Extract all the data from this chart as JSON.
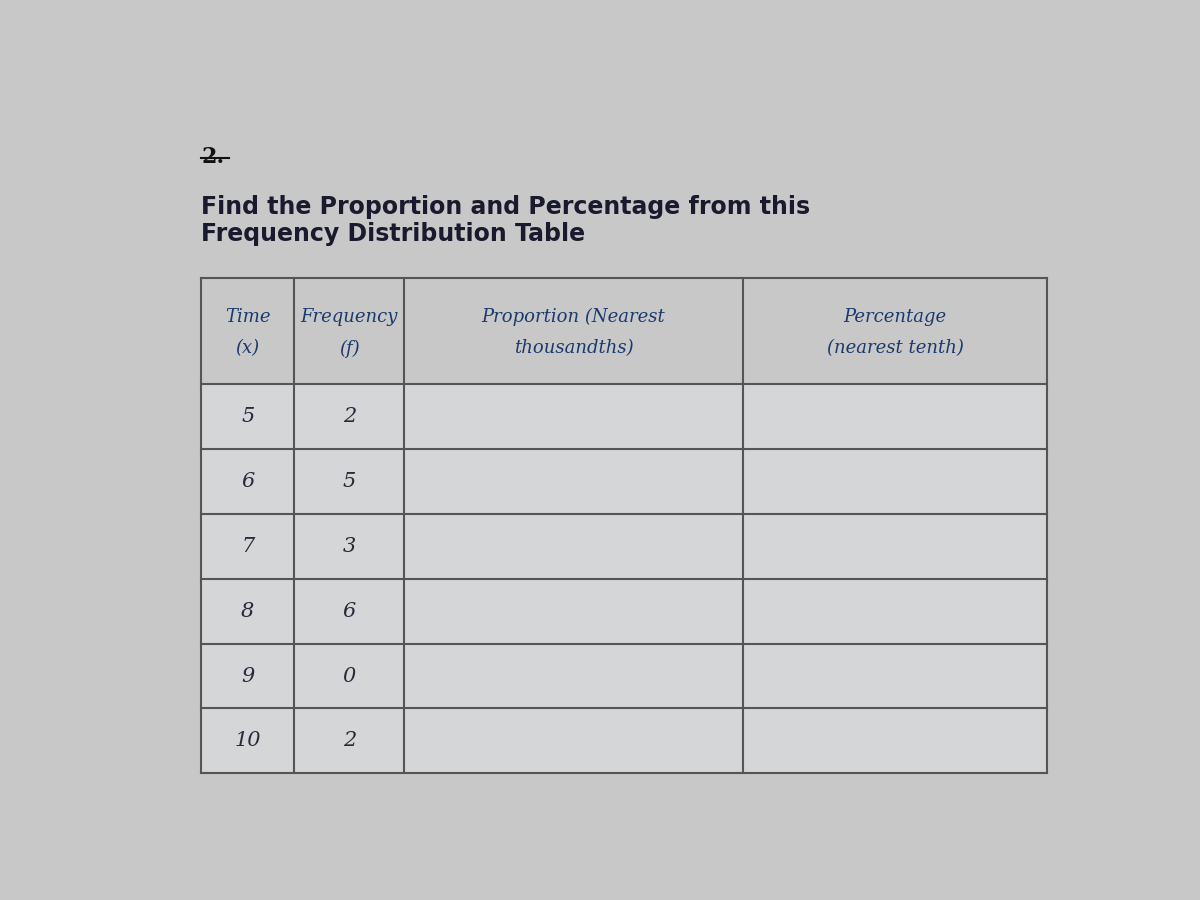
{
  "number_label": "2.",
  "title_line1": "Find the Proportion and Percentage from this",
  "title_line2": "Frequency Distribution Table",
  "header_col1_line1": "Time",
  "header_col1_line2": "(x)",
  "header_col2_line1": "Frequency",
  "header_col2_line2": "(f)",
  "header_col3_line1": "Proportion (Nearest",
  "header_col3_line2": "thousandths)",
  "header_col4_line1": "Percentage",
  "header_col4_line2": "(nearest tenth)",
  "time_values": [
    "5",
    "6",
    "7",
    "8",
    "9",
    "10"
  ],
  "freq_values": [
    "2",
    "5",
    "3",
    "6",
    "0",
    "2"
  ],
  "bg_color": "#c8c8c8",
  "header_bg": "#c8c8c8",
  "cell_bg": "#d4d6d8",
  "border_color": "#555555",
  "title_color": "#1a1a2e",
  "header_text_color": "#1a3a6e",
  "cell_text_color": "#2a2a3a",
  "number_color": "#111111"
}
